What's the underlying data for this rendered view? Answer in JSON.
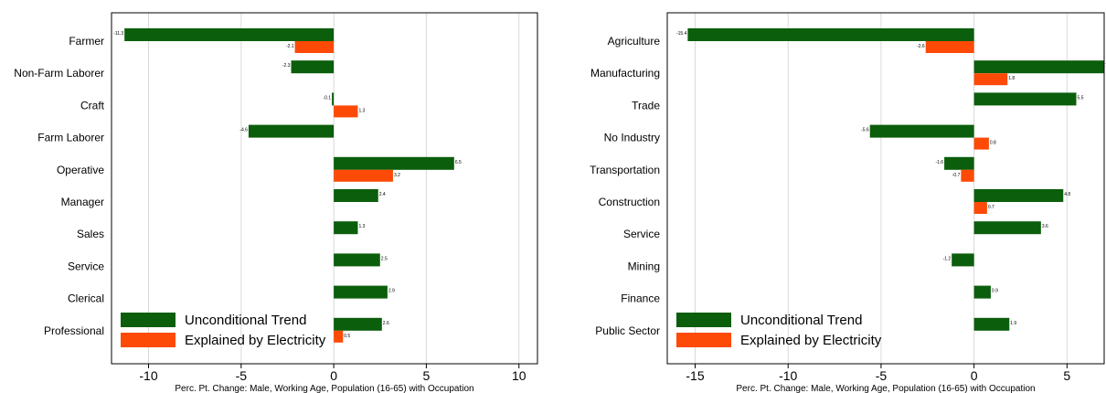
{
  "colors": {
    "trend": "#0b5e0b",
    "electricity": "#fd4a06",
    "grid": "#d9d9d9",
    "axis": "#000000"
  },
  "chart_data": [
    {
      "type": "bar",
      "orientation": "horizontal",
      "categories": [
        "Farmer",
        "Non-Farm Laborer",
        "Craft",
        "Farm Laborer",
        "Operative",
        "Manager",
        "Sales",
        "Service",
        "Clerical",
        "Professional"
      ],
      "series": [
        {
          "name": "Unconditional Trend",
          "values": [
            -11.3,
            -2.3,
            -0.1,
            -4.6,
            6.5,
            2.4,
            1.3,
            2.5,
            2.9,
            2.6
          ]
        },
        {
          "name": "Explained by Electricity",
          "values": [
            -2.1,
            null,
            1.3,
            null,
            3.2,
            null,
            null,
            null,
            null,
            0.5
          ]
        }
      ],
      "value_labels": {
        "trend": [
          "-11.3",
          "-2.3",
          "-0.1",
          "-4.6",
          "6.5",
          "2.4",
          "1.3",
          "2.5",
          "2.9",
          "2.6"
        ],
        "electricity": [
          "-2.1",
          "",
          "1.3",
          "",
          "3.2",
          "",
          "",
          "",
          "",
          "0.5"
        ]
      },
      "xlim": [
        -12,
        11
      ],
      "xticks": [
        -10,
        -5,
        0,
        5,
        10
      ],
      "xtick_labels": [
        "-10",
        "-5",
        "0",
        "5",
        "10"
      ],
      "xlabel": "Perc. Pt. Change: Male, Working Age, Population (16-65) with Occupation",
      "grid": "vertical",
      "legend": {
        "position": "bottom-left",
        "entries": [
          "Unconditional Trend",
          "Explained by Electricity"
        ]
      }
    },
    {
      "type": "bar",
      "orientation": "horizontal",
      "categories": [
        "Agriculture",
        "Manufacturing",
        "Trade",
        "No Industry",
        "Transportation",
        "Construction",
        "Service",
        "Mining",
        "Finance",
        "Public Sector"
      ],
      "series": [
        {
          "name": "Unconditional Trend",
          "values": [
            -15.4,
            7,
            5.5,
            -5.6,
            -1.6,
            4.8,
            3.6,
            -1.2,
            0.9,
            1.9
          ]
        },
        {
          "name": "Explained by Electricity",
          "values": [
            -2.6,
            1.8,
            null,
            0.8,
            -0.7,
            0.7,
            null,
            null,
            null,
            null
          ]
        }
      ],
      "value_labels": {
        "trend": [
          "-15.4",
          "7",
          "5.5",
          "-5.6",
          "-1.6",
          "4.8",
          "3.6",
          "-1.2",
          "0.9",
          "1.9"
        ],
        "electricity": [
          "-2.6",
          "1.8",
          "",
          "0.8",
          "-0.7",
          "0.7",
          "",
          "",
          "",
          ""
        ]
      },
      "xlim": [
        -16.5,
        7
      ],
      "xticks": [
        -15,
        -10,
        -5,
        0,
        5
      ],
      "xtick_labels": [
        "-15",
        "-10",
        "-5",
        "0",
        "5"
      ],
      "xlabel": "Perc. Pt. Change: Male, Working Age, Population (16-65) with Occupation",
      "grid": "vertical",
      "legend": {
        "position": "bottom-left",
        "entries": [
          "Unconditional Trend",
          "Explained by Electricity"
        ]
      }
    }
  ]
}
